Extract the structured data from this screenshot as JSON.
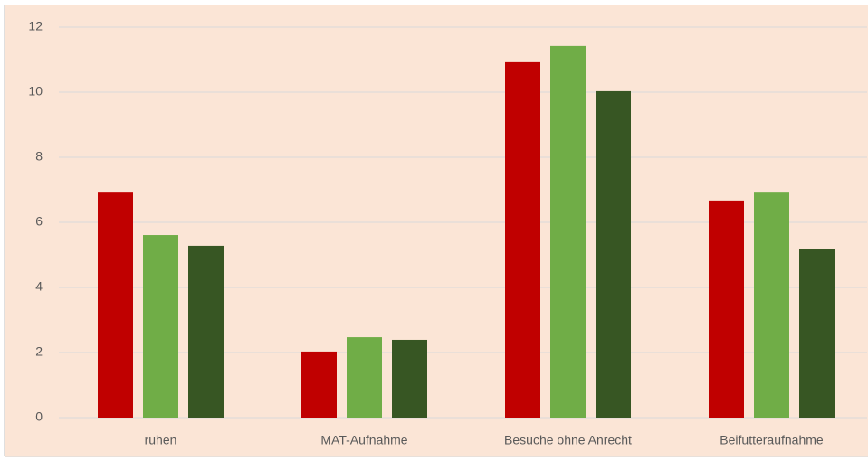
{
  "chart_data": {
    "type": "bar",
    "categories": [
      "ruhen",
      "MAT-Aufnahme",
      "Besuche ohne Anrecht",
      "Beifutteraufnahme"
    ],
    "series": [
      {
        "color": "#c00000",
        "values": [
          6.94,
          2.03,
          10.92,
          6.67
        ]
      },
      {
        "color": "#70ad47",
        "values": [
          5.61,
          2.47,
          11.42,
          6.94
        ]
      },
      {
        "color": "#375623",
        "values": [
          5.28,
          2.39,
          10.03,
          5.17
        ]
      }
    ],
    "ylim": [
      0,
      12
    ],
    "yticks": [
      0,
      2,
      4,
      6,
      8,
      10,
      12
    ],
    "grid": true
  }
}
